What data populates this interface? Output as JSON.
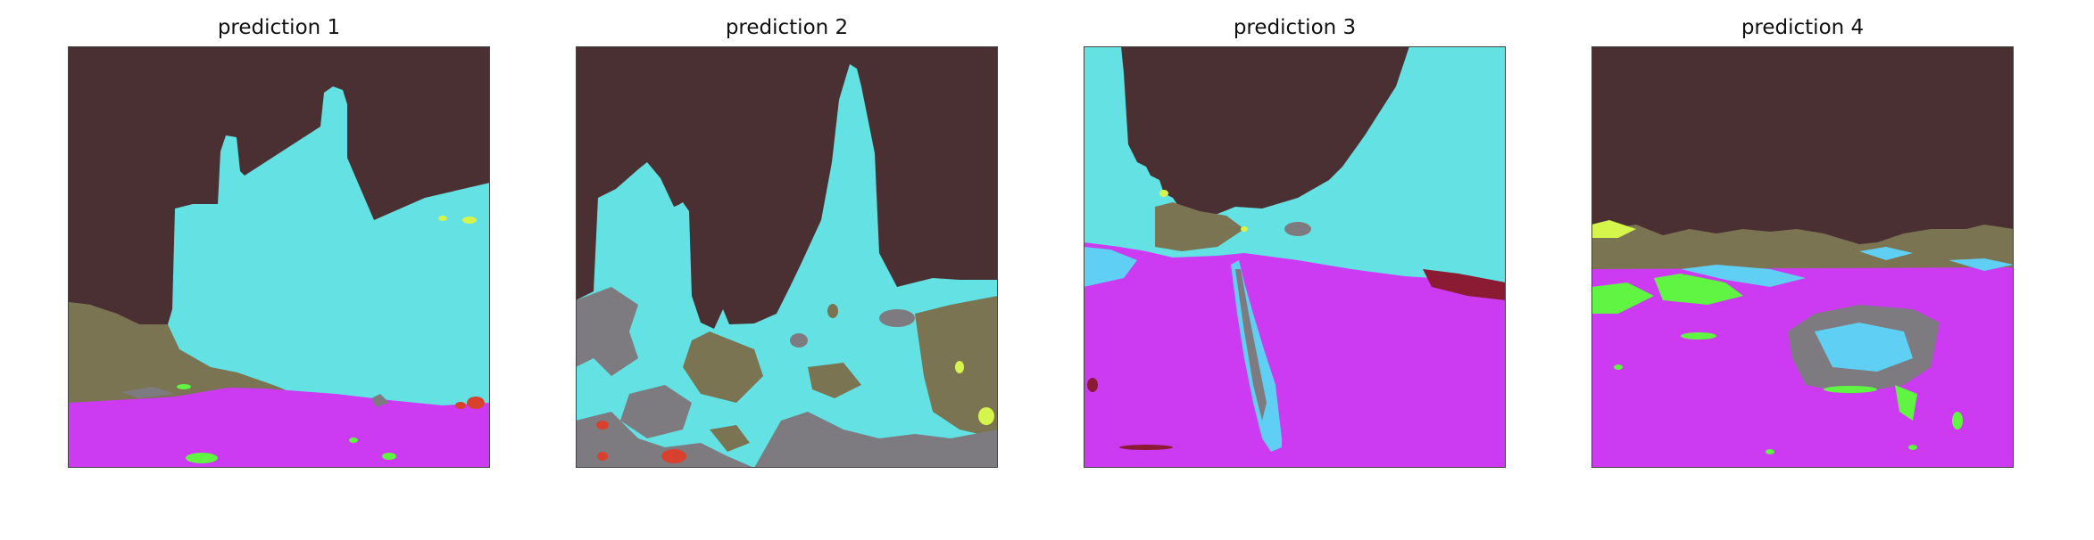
{
  "figure": {
    "panels": [
      {
        "title": "prediction 1"
      },
      {
        "title": "prediction 2"
      },
      {
        "title": "prediction 3"
      },
      {
        "title": "prediction 4"
      }
    ]
  },
  "colors": {
    "sky": "#4a3033",
    "building": "#63e1e3",
    "terrain": "#7a7452",
    "road": "#cc3bf2",
    "vegetation": "#5ff542",
    "rock": "#7e7b80",
    "lightblue": "#5fd0f4",
    "red": "#d8412e",
    "yellow": "#d6f54c",
    "darkred": "#8a1b33"
  }
}
